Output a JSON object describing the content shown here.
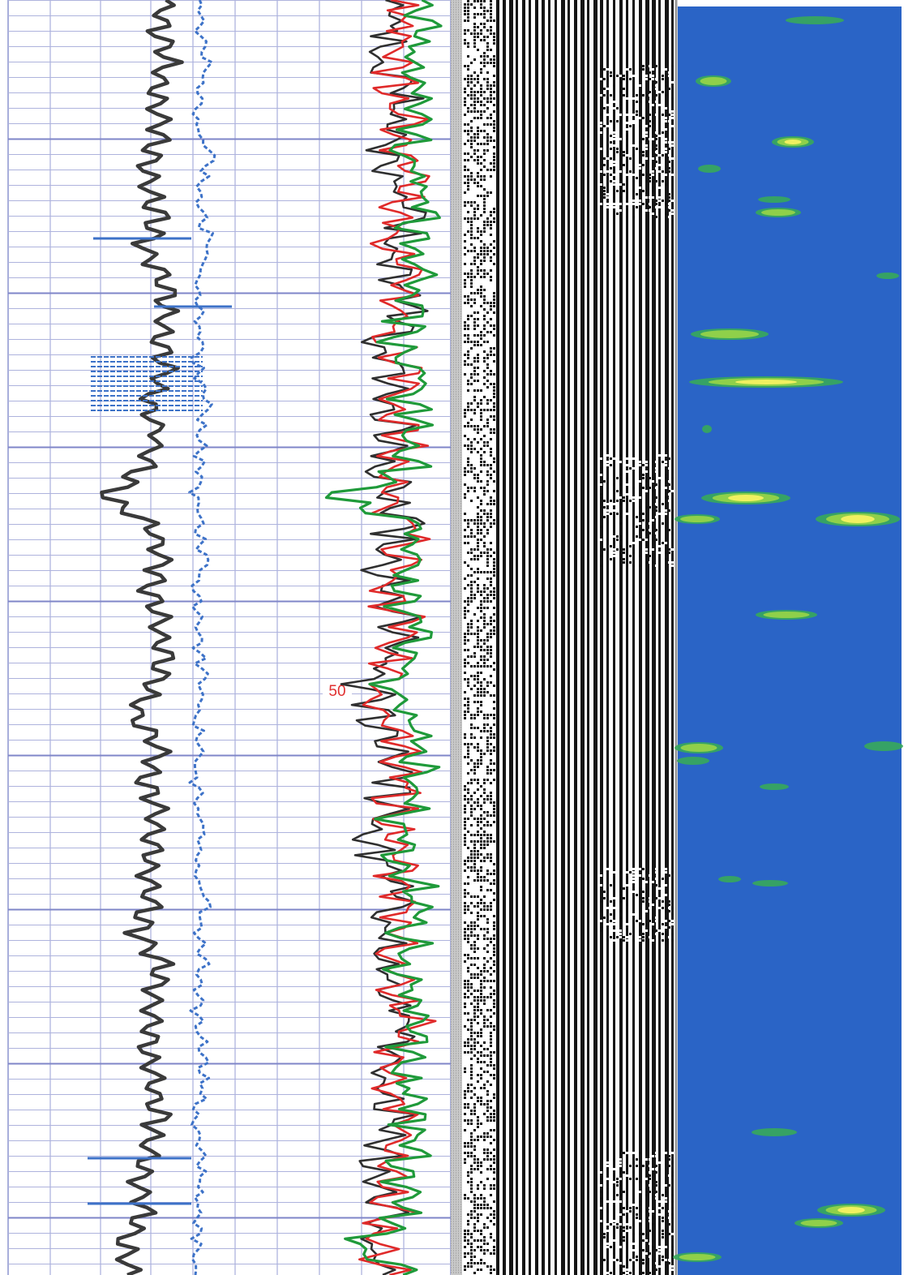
{
  "chart_data": [
    {
      "type": "line",
      "title": "",
      "xlabel": "",
      "ylabel": "",
      "grid": true,
      "depth_label": "50",
      "ylim": [
        0,
        82
      ],
      "series": [
        {
          "color": "#3a3a3a",
          "y": [
            0,
            2,
            4,
            6,
            8,
            10,
            12,
            14,
            16,
            18,
            20,
            22,
            24,
            26,
            28,
            30,
            32,
            34,
            36,
            38,
            40,
            42,
            44,
            46,
            48,
            50,
            52,
            54,
            56,
            58,
            60,
            62,
            64,
            66,
            68,
            70,
            72,
            74,
            76,
            78,
            80,
            82
          ],
          "x": [
            46,
            44,
            47,
            43,
            45,
            42,
            41,
            44,
            40,
            46,
            47,
            45,
            46,
            41,
            44,
            40,
            29,
            43,
            45,
            42,
            44,
            46,
            43,
            37,
            45,
            40,
            44,
            43,
            41,
            42,
            38,
            45,
            43,
            42,
            41,
            43,
            44,
            41,
            38,
            40,
            34,
            35
          ]
        },
        {
          "color": "#3d72c8",
          "y": [
            0,
            2,
            4,
            6,
            8,
            10,
            12,
            14,
            16,
            18,
            20,
            22,
            24,
            26,
            28,
            30,
            32,
            34,
            36,
            38,
            40,
            42,
            44,
            46,
            48,
            50,
            52,
            54,
            56,
            58,
            60,
            62,
            64,
            66,
            68,
            70,
            72,
            74,
            76,
            78,
            80,
            82
          ],
          "x": [
            57,
            56,
            58,
            57,
            55,
            60,
            56,
            57,
            59,
            55,
            56,
            57,
            55,
            58,
            56,
            57,
            55,
            56,
            58,
            55,
            57,
            56,
            58,
            55,
            57,
            55,
            56,
            57,
            55,
            58,
            56,
            57,
            55,
            56,
            58,
            57,
            55,
            56,
            57,
            55,
            56,
            55
          ]
        },
        {
          "color": "#2f2f2f",
          "y": [
            0,
            2,
            4,
            6,
            8,
            10,
            12,
            14,
            16,
            18,
            20,
            22,
            24,
            26,
            28,
            30,
            32,
            34,
            36,
            38,
            40,
            42,
            44,
            46,
            48,
            50,
            52,
            54,
            56,
            58,
            60,
            62,
            64,
            66,
            68,
            70,
            72,
            74,
            76,
            78,
            80,
            82
          ],
          "x": [
            112,
            114,
            110,
            116,
            113,
            111,
            115,
            118,
            112,
            114,
            117,
            110,
            114,
            111,
            113,
            109,
            112,
            115,
            108,
            111,
            114,
            112,
            105,
            108,
            113,
            115,
            110,
            106,
            111,
            114,
            112,
            109,
            113,
            115,
            110,
            112,
            114,
            111,
            108,
            113,
            105,
            110
          ]
        },
        {
          "color": "#e02a2a",
          "y": [
            0,
            2,
            4,
            6,
            8,
            10,
            12,
            14,
            16,
            18,
            20,
            22,
            24,
            26,
            28,
            30,
            32,
            34,
            36,
            38,
            40,
            42,
            44,
            46,
            48,
            50,
            52,
            54,
            56,
            58,
            60,
            62,
            64,
            66,
            68,
            70,
            72,
            74,
            76,
            78,
            80,
            82
          ],
          "x": [
            116,
            118,
            114,
            113,
            117,
            115,
            119,
            116,
            114,
            118,
            115,
            113,
            117,
            114,
            116,
            113,
            112,
            118,
            115,
            110,
            117,
            114,
            109,
            112,
            116,
            118,
            113,
            110,
            115,
            117,
            113,
            112,
            115,
            118,
            112,
            114,
            116,
            113,
            111,
            114,
            107,
            112
          ]
        },
        {
          "color": "#1f9a3a",
          "y": [
            0,
            2,
            4,
            6,
            8,
            10,
            12,
            14,
            16,
            18,
            20,
            22,
            24,
            26,
            28,
            30,
            32,
            34,
            36,
            38,
            40,
            42,
            44,
            46,
            48,
            50,
            52,
            54,
            56,
            58,
            60,
            62,
            64,
            66,
            68,
            70,
            72,
            74,
            76,
            78,
            80,
            82
          ],
          "x": [
            120,
            122,
            118,
            121,
            119,
            117,
            123,
            120,
            118,
            122,
            119,
            116,
            121,
            118,
            120,
            117,
            96,
            121,
            119,
            114,
            121,
            118,
            113,
            116,
            120,
            122,
            117,
            114,
            119,
            121,
            117,
            116,
            119,
            122,
            116,
            118,
            120,
            117,
            115,
            118,
            102,
            116
          ]
        }
      ]
    },
    {
      "type": "heatmap",
      "title": "",
      "colors": {
        "background": "#2a64c6",
        "low": "#37a85a",
        "mid": "#8fd04a",
        "high": "#f0f060"
      }
    }
  ]
}
